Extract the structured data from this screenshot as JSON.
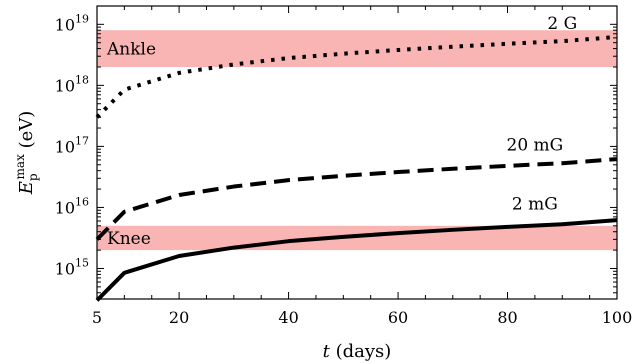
{
  "chart_data": {
    "type": "line",
    "title": "",
    "xlabel": "t (days)",
    "ylabel": "E_p^max (eV)",
    "xlim": [
      5,
      100
    ],
    "ylim_log10": [
      14.5,
      19.3
    ],
    "yscale": "log",
    "x_ticks": [
      5,
      20,
      40,
      60,
      80,
      100
    ],
    "y_ticks": [
      {
        "exponent": 15,
        "label": "10^15"
      },
      {
        "exponent": 16,
        "label": "10^16"
      },
      {
        "exponent": 17,
        "label": "10^17"
      },
      {
        "exponent": 18,
        "label": "10^18"
      },
      {
        "exponent": 19,
        "label": "10^19"
      }
    ],
    "bands": [
      {
        "label": "Ankle",
        "y_range": [
          2e+18,
          8e+18
        ],
        "color": "#f9b4b4"
      },
      {
        "label": "Knee",
        "y_range": [
          2000000000000000.0,
          5000000000000000.0
        ],
        "color": "#f9b4b4"
      }
    ],
    "series": [
      {
        "name": "2 G",
        "style": "dotted",
        "x": [
          5,
          10,
          20,
          30,
          40,
          50,
          60,
          70,
          80,
          90,
          100
        ],
        "y": [
          3e+17,
          8.5e+17,
          1.6e+18,
          2.2e+18,
          2.8e+18,
          3.3e+18,
          3.8e+18,
          4.3e+18,
          4.8e+18,
          5.3e+18,
          6.2e+18
        ]
      },
      {
        "name": "20 mG",
        "style": "dashed",
        "x": [
          5,
          10,
          20,
          30,
          40,
          50,
          60,
          70,
          80,
          90,
          100
        ],
        "y": [
          3000000000000000.0,
          8500000000000000.0,
          1.6e+16,
          2.2e+16,
          2.8e+16,
          3.3e+16,
          3.8e+16,
          4.3e+16,
          4.8e+16,
          5.3e+16,
          6.2e+16
        ]
      },
      {
        "name": "2 mG",
        "style": "solid",
        "x": [
          5,
          10,
          20,
          30,
          40,
          50,
          60,
          70,
          80,
          90,
          100
        ],
        "y": [
          300000000000000.0,
          850000000000000.0,
          1600000000000000.0,
          2200000000000000.0,
          2800000000000000.0,
          3300000000000000.0,
          3800000000000000.0,
          4300000000000000.0,
          4800000000000000.0,
          5300000000000000.0,
          6200000000000000.0
        ]
      }
    ],
    "grid": false,
    "legend": "none"
  }
}
